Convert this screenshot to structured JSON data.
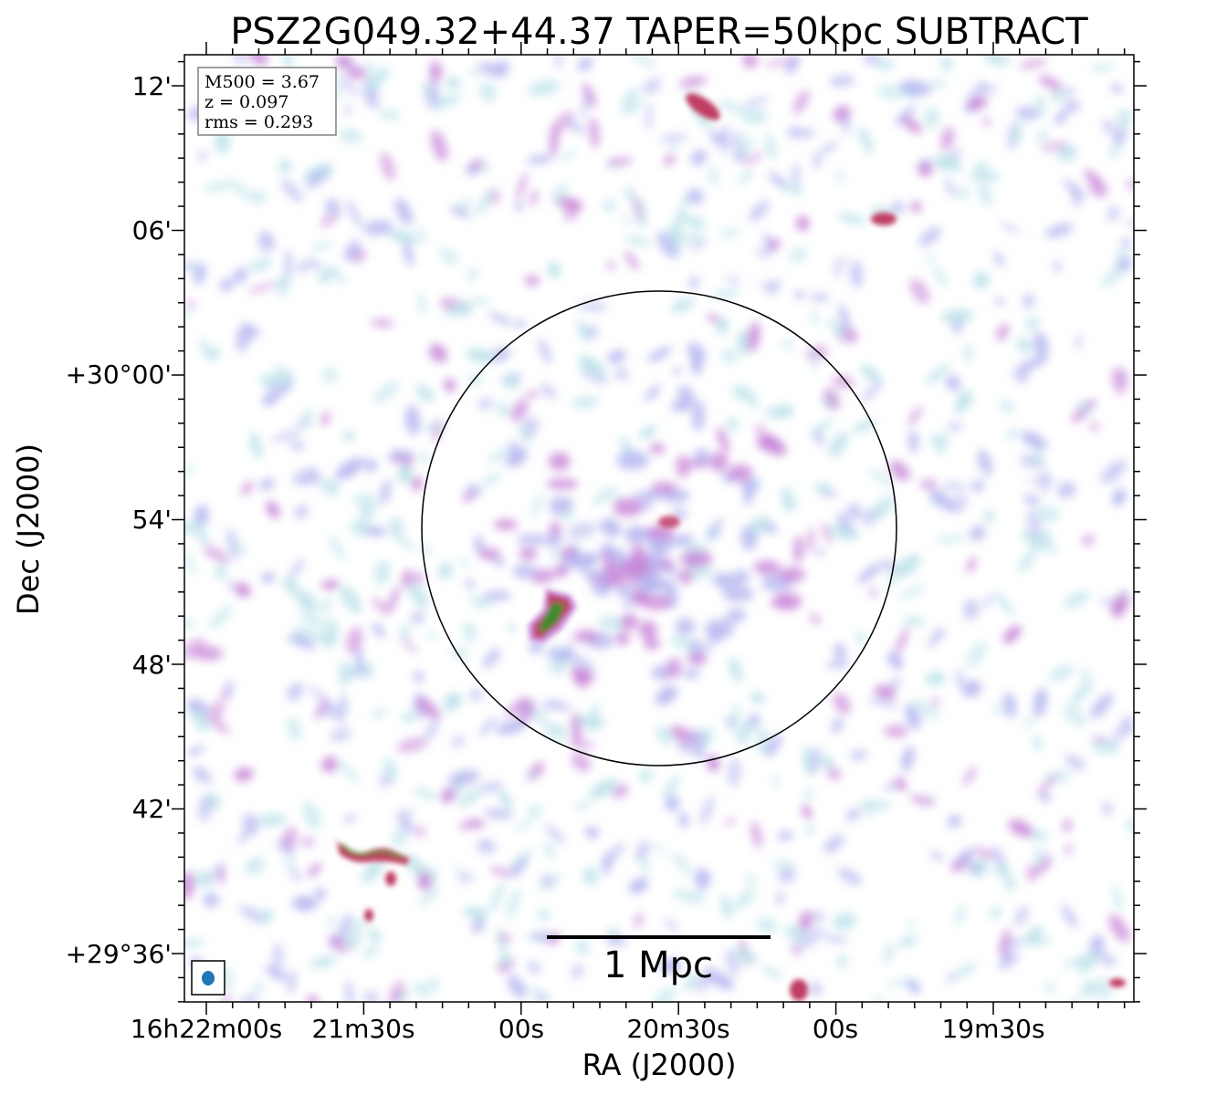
{
  "chart_data": {
    "type": "heatmap",
    "title": "PSZ2G049.32+44.37 TAPER=50kpc SUBTRACT",
    "xlabel": "RA (J2000)",
    "ylabel": "Dec (J2000)",
    "x_ticks": [
      "16h22m00s",
      "21m30s",
      "00s",
      "20m30s",
      "00s",
      "19m30s"
    ],
    "y_ticks": [
      "12'",
      "06'",
      "+30°00'",
      "54'",
      "48'",
      "42'",
      "+29°36'"
    ],
    "info_box": [
      "M500 = 3.67",
      "z = 0.097",
      "rms = 0.293"
    ],
    "scalebar_label": "1 Mpc",
    "colors": {
      "background": "#ffffff",
      "noise_low": "#bfe3ea",
      "noise_mid": "#b7b8f0",
      "emission": "#c886d8",
      "bright": "#c03c64",
      "peak": "#3f8a2a",
      "beam": "#1f77b4"
    }
  }
}
